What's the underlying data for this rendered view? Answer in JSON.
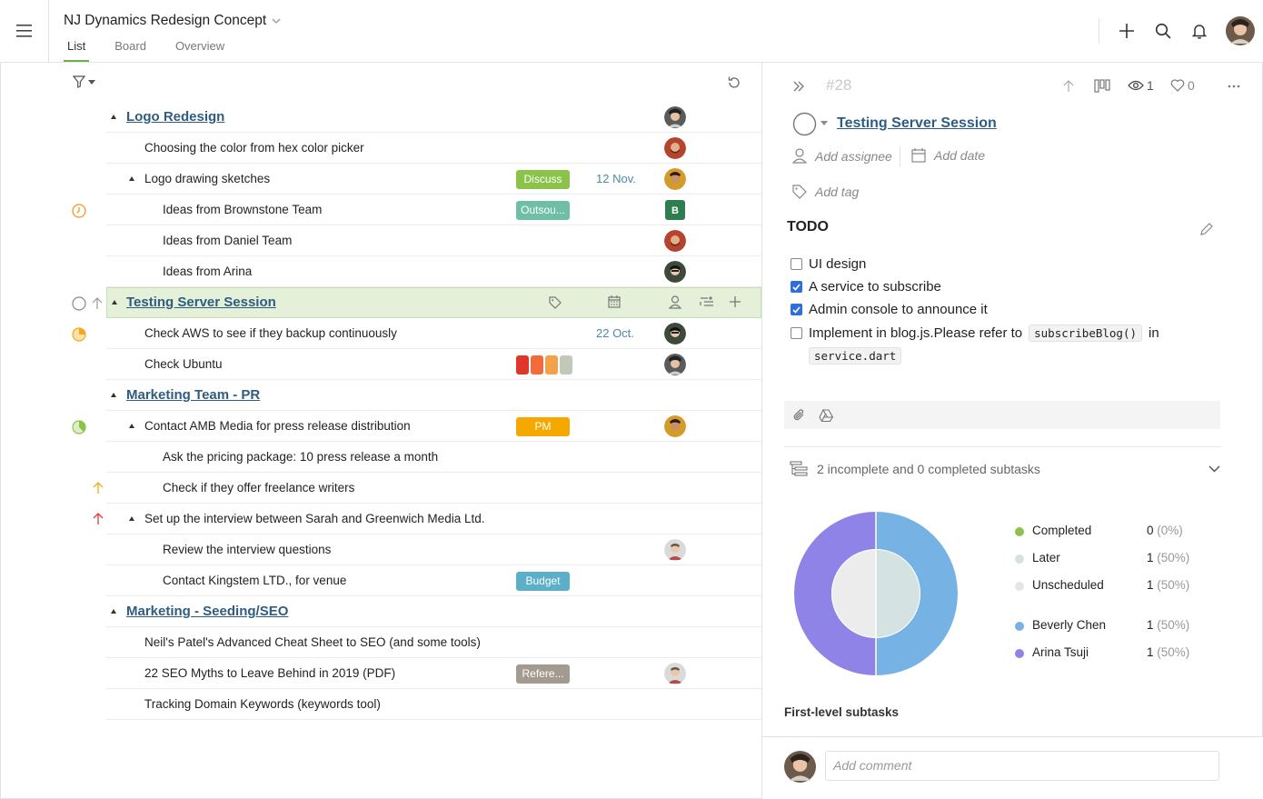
{
  "header": {
    "project_title": "NJ Dynamics Redesign Concept",
    "tabs": [
      {
        "label": "List",
        "active": true
      },
      {
        "label": "Board",
        "active": false
      },
      {
        "label": "Overview",
        "active": false
      }
    ],
    "icons": [
      "plus-icon",
      "search-icon",
      "bell-icon",
      "user-avatar"
    ]
  },
  "list": {
    "rows": [
      {
        "title": "Logo Redesign",
        "type": "section"
      },
      {
        "title": "Choosing the color from hex color picker"
      },
      {
        "title": "Logo drawing sketches",
        "tag": "Discuss",
        "date": "12 Nov."
      },
      {
        "title": "Ideas from Brownstone Team",
        "tag": "Outsou...",
        "assignee_initial": "B"
      },
      {
        "title": "Ideas from Daniel Team"
      },
      {
        "title": "Ideas from Arina"
      },
      {
        "title": "Testing Server Session",
        "type": "section",
        "selected": true
      },
      {
        "title": "Check AWS to see if they backup continuously",
        "date": "22 Oct."
      },
      {
        "title": "Check Ubuntu"
      },
      {
        "title": "Marketing Team - PR",
        "type": "section"
      },
      {
        "title": "Contact AMB Media for press release distribution",
        "tag": "PM"
      },
      {
        "title": "Ask the pricing package: 10 press release a month"
      },
      {
        "title": "Check if they offer freelance writers"
      },
      {
        "title": "Set up the interview between Sarah and Greenwich Media Ltd."
      },
      {
        "title": "Review the interview questions"
      },
      {
        "title": "Contact Kingstem LTD., for venue",
        "tag": "Budget"
      },
      {
        "title": "Marketing - Seeding/SEO",
        "type": "section"
      },
      {
        "title": "Neil's Patel's Advanced Cheat Sheet to SEO (and some tools)"
      },
      {
        "title": "22 SEO Myths to Leave Behind in 2019 (PDF)",
        "tag": "Refere..."
      },
      {
        "title": "Tracking Domain Keywords (keywords tool)"
      }
    ]
  },
  "detail": {
    "task_id": "#28",
    "watchers": "1",
    "likes": "0",
    "title": "Testing Server Session",
    "add_assignee": "Add assignee",
    "add_date": "Add date",
    "add_tag": "Add tag",
    "todo_heading": "TODO",
    "checklist": [
      {
        "text": "UI design",
        "checked": false
      },
      {
        "text": "A service to subscribe",
        "checked": true
      },
      {
        "text": "Admin console to announce it",
        "checked": true
      },
      {
        "text_before": "Implement in blog.js.Please refer to",
        "code1": "subscribeBlog()",
        "text_mid": "in",
        "code2": "service.dart",
        "checked": false
      }
    ],
    "subtask_summary": "2 incomplete and 0 completed subtasks",
    "legend": [
      {
        "label": "Completed",
        "count": "0",
        "pct": "(0%)",
        "color": "#8bc34a"
      },
      {
        "label": "Later",
        "count": "1",
        "pct": "(50%)",
        "color": "#d4e2e2"
      },
      {
        "label": "Unscheduled",
        "count": "1",
        "pct": "(50%)",
        "color": "#e6e6e6"
      },
      {
        "label": "Beverly Chen",
        "count": "1",
        "pct": "(50%)",
        "color": "#76b3e4"
      },
      {
        "label": "Arina Tsuji",
        "count": "1",
        "pct": "(50%)",
        "color": "#8f83e8"
      }
    ],
    "first_level_label": "First-level subtasks",
    "comment_placeholder": "Add comment"
  }
}
